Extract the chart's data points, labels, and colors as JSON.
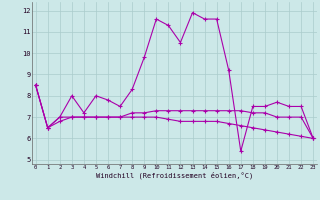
{
  "x": [
    0,
    1,
    2,
    3,
    4,
    5,
    6,
    7,
    8,
    9,
    10,
    11,
    12,
    13,
    14,
    15,
    16,
    17,
    18,
    19,
    20,
    21,
    22,
    23
  ],
  "line1": [
    8.5,
    6.5,
    7.0,
    8.0,
    7.2,
    8.0,
    7.8,
    7.5,
    8.3,
    9.8,
    11.6,
    11.3,
    10.5,
    11.9,
    11.6,
    11.6,
    9.2,
    5.4,
    7.5,
    7.5,
    7.7,
    7.5,
    7.5,
    6.0
  ],
  "line2": [
    8.5,
    6.5,
    7.0,
    7.0,
    7.0,
    7.0,
    7.0,
    7.0,
    7.2,
    7.2,
    7.3,
    7.3,
    7.3,
    7.3,
    7.3,
    7.3,
    7.3,
    7.3,
    7.2,
    7.2,
    7.0,
    7.0,
    7.0,
    6.0
  ],
  "line3": [
    8.5,
    6.5,
    6.8,
    7.0,
    7.0,
    7.0,
    7.0,
    7.0,
    7.0,
    7.0,
    7.0,
    6.9,
    6.8,
    6.8,
    6.8,
    6.8,
    6.7,
    6.6,
    6.5,
    6.4,
    6.3,
    6.2,
    6.1,
    6.0
  ],
  "bg_color": "#cce8e8",
  "grid_color": "#aacccc",
  "line_color": "#aa00aa",
  "xlabel": "Windchill (Refroidissement éolien,°C)",
  "yticks": [
    5,
    6,
    7,
    8,
    9,
    10,
    11,
    12
  ],
  "xticks": [
    0,
    1,
    2,
    3,
    4,
    5,
    6,
    7,
    8,
    9,
    10,
    11,
    12,
    13,
    14,
    15,
    16,
    17,
    18,
    19,
    20,
    21,
    22,
    23
  ],
  "ylim": [
    4.8,
    12.4
  ],
  "xlim": [
    -0.3,
    23.3
  ],
  "xlabel_fontsize": 5.0,
  "xtick_fontsize": 4.0,
  "ytick_fontsize": 5.0,
  "lw": 0.8,
  "marker_size": 2.5
}
